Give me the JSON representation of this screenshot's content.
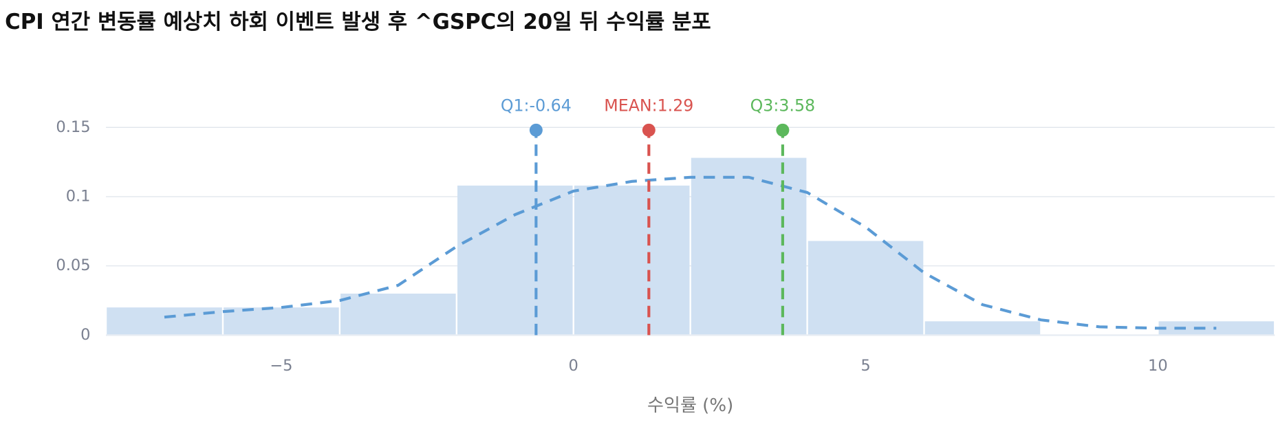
{
  "chart_data": {
    "type": "histogram",
    "title": "CPI 연간 변동률 예상치 하회 이벤트 발생 후 ^GSPC의 20일 뒤 수익률 분포",
    "x_label": "수익률 (%)",
    "bins": [
      -8,
      -6,
      -4,
      -2,
      0,
      2,
      4,
      6,
      8,
      10,
      12
    ],
    "values": [
      0.02,
      0.02,
      0.03,
      0.108,
      0.108,
      0.128,
      0.068,
      0.01,
      0,
      0.01
    ],
    "color": "#cfe0f2",
    "kde": {
      "color": "#5b9bd5",
      "x": [
        -7,
        -6,
        -5,
        -4,
        -3,
        -2,
        -1,
        0,
        1,
        2,
        3,
        4,
        5,
        6,
        7,
        8,
        9,
        10,
        11
      ],
      "values": [
        0.013,
        0.017,
        0.02,
        0.025,
        0.036,
        0.064,
        0.087,
        0.104,
        0.111,
        0.114,
        0.114,
        0.103,
        0.078,
        0.045,
        0.022,
        0.011,
        0.006,
        0.005,
        0.005
      ]
    },
    "markers": [
      {
        "label": "Q1:-0.64",
        "x": -0.64,
        "y": 0.148,
        "color": "#5b9bd5"
      },
      {
        "label": "MEAN:1.29",
        "x": 1.29,
        "y": 0.148,
        "color": "#d9534f"
      },
      {
        "label": "Q3:3.58",
        "x": 3.58,
        "y": 0.148,
        "color": "#5cb85c"
      }
    ],
    "xlim": [
      -8,
      12
    ],
    "ylim": [
      0,
      0.17
    ],
    "xticks": [
      {
        "value": -5,
        "label": "−5"
      },
      0,
      5,
      10
    ],
    "yticks": [
      0,
      0.05,
      0.1,
      0.15
    ],
    "grid": true
  }
}
